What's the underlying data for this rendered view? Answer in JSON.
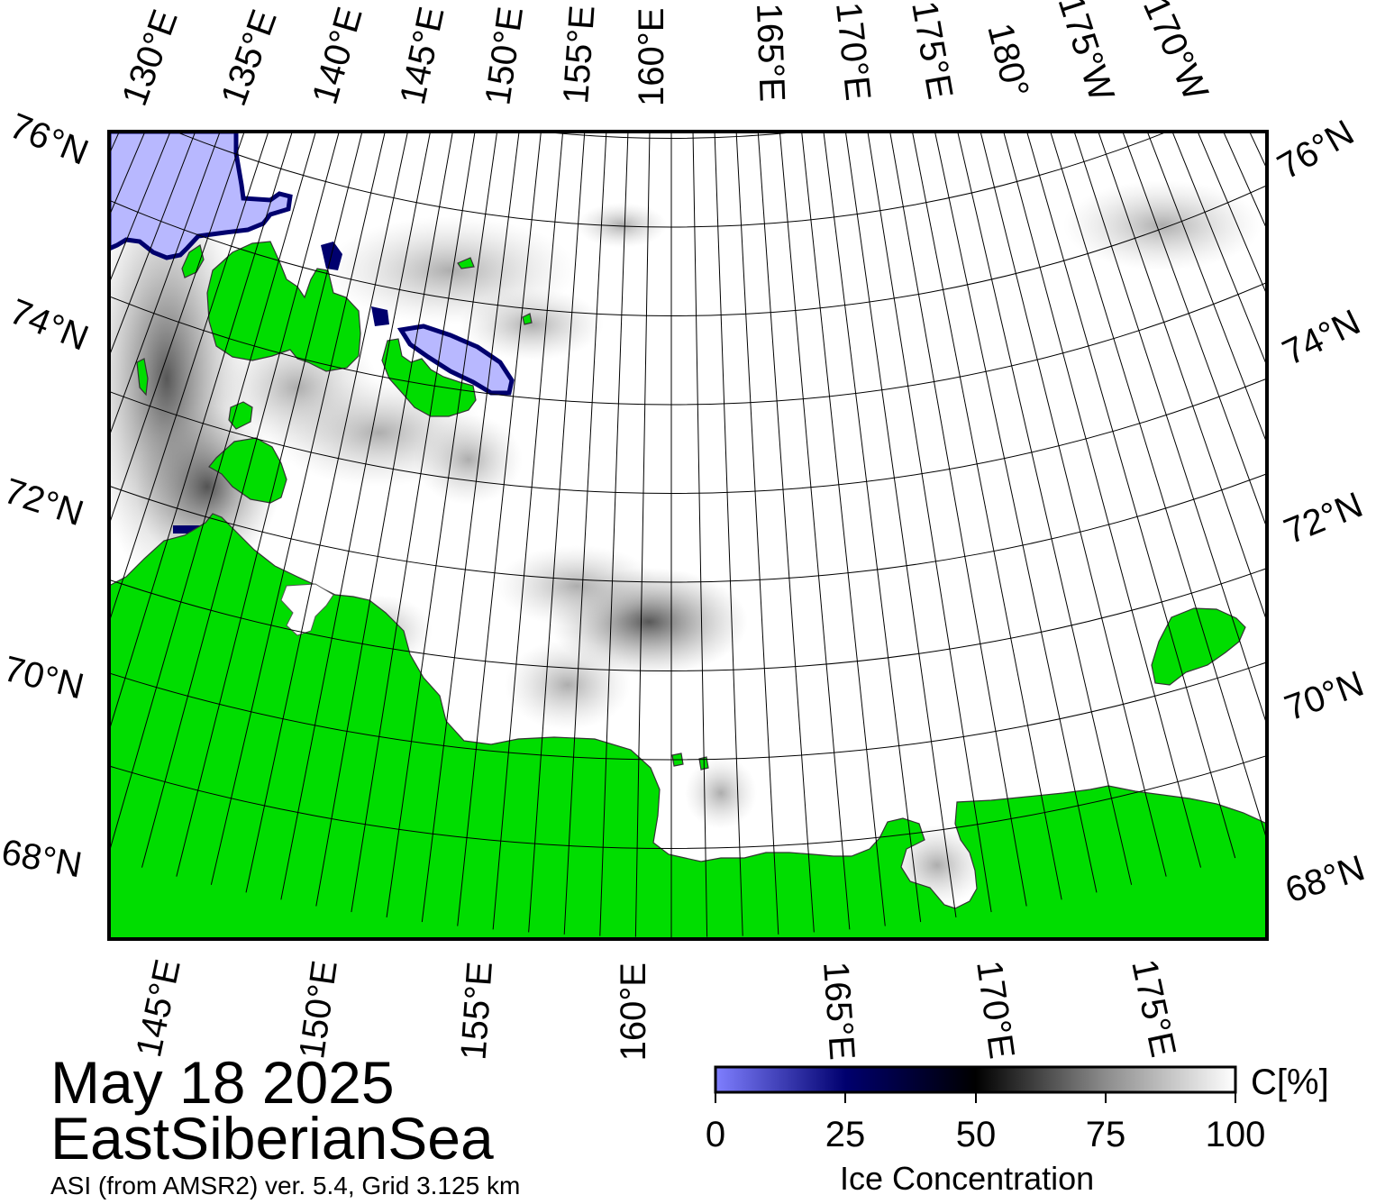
{
  "map": {
    "date": "May 18 2025",
    "region": "EastSiberianSea",
    "product": "ASI (from AMSR2) ver. 5.4,  Grid 3.125 km",
    "colors": {
      "land": "#00dd00",
      "open_water": "#ffffff",
      "ice_low": "#b8b8ff",
      "frame": "#000000",
      "graticule": "#000000"
    },
    "top_longitude_labels": [
      "130°E",
      "135°E",
      "140°E",
      "145°E",
      "150°E",
      "155°E",
      "160°E",
      "165°E",
      "170°E",
      "175°E",
      "180°",
      "175°W",
      "170°W"
    ],
    "bottom_longitude_labels": [
      "145°E",
      "150°E",
      "155°E",
      "160°E",
      "165°E",
      "170°E",
      "175°E"
    ],
    "left_latitude_labels": [
      "76°N",
      "74°N",
      "72°N",
      "70°N",
      "68°N"
    ],
    "right_latitude_labels": [
      "76°N",
      "74°N",
      "72°N",
      "70°N",
      "68°N"
    ]
  },
  "colorbar": {
    "ticks": [
      "0",
      "25",
      "50",
      "75",
      "100"
    ],
    "unit": "C[%]",
    "title": "Ice Concentration",
    "gradient": [
      "#7f7fff",
      "#00006e",
      "#000000",
      "#8c8c8c",
      "#ffffff"
    ]
  }
}
